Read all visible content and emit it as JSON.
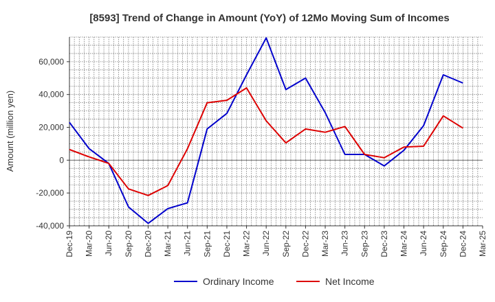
{
  "chart_data": {
    "type": "line",
    "title": "[8593]  Trend of Change in Amount (YoY) of 12Mo Moving Sum of Incomes",
    "xlabel": "",
    "ylabel": "Amount (million yen)",
    "ylim": [
      -40000,
      75000
    ],
    "yticks": [
      -40000,
      -20000,
      0,
      20000,
      40000,
      60000
    ],
    "ytick_labels": [
      "-40,000",
      "-20,000",
      "0",
      "20,000",
      "40,000",
      "60,000"
    ],
    "categories": [
      "Dec-19",
      "Mar-20",
      "Jun-20",
      "Sep-20",
      "Dec-20",
      "Mar-21",
      "Jun-21",
      "Sep-21",
      "Dec-21",
      "Mar-22",
      "Jun-22",
      "Sep-22",
      "Dec-22",
      "Mar-23",
      "Jun-23",
      "Sep-23",
      "Dec-23",
      "Mar-24",
      "Jun-24",
      "Sep-24",
      "Dec-24",
      "Mar-25"
    ],
    "series": [
      {
        "name": "Ordinary Income",
        "color": "#0000cc",
        "values": [
          23000,
          7000,
          -2000,
          -28500,
          -38500,
          -29500,
          -26000,
          19000,
          28500,
          52000,
          74500,
          43000,
          50000,
          29000,
          3500,
          3500,
          -3500,
          6000,
          21000,
          52000,
          47000,
          null
        ]
      },
      {
        "name": "Net Income",
        "color": "#dd0000",
        "values": [
          6500,
          2000,
          -2000,
          -17500,
          -21500,
          -15500,
          7000,
          35000,
          36500,
          44000,
          24000,
          10500,
          19000,
          17000,
          20500,
          3500,
          1500,
          8000,
          8500,
          27000,
          19500,
          null
        ]
      }
    ],
    "grid": true,
    "legend_position": "bottom-center"
  }
}
